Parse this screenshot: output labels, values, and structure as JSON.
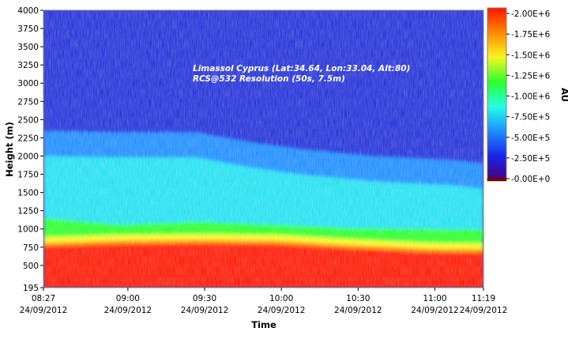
{
  "chart_data": {
    "type": "heatmap",
    "title": "",
    "annotations": [
      "Limassol Cyprus (Lat:34.64, Lon:33.04, Alt:80)",
      "RCS@532 Resolution (50s, 7.5m)"
    ],
    "xlabel": "Time",
    "ylabel": "Height (m)",
    "colorbar_label": "AU",
    "ylim": [
      195,
      4000
    ],
    "clim": [
      0,
      2000000
    ],
    "x_ticks": [
      {
        "time": "08:27",
        "date": "24/09/2012"
      },
      {
        "time": "09:00",
        "date": "24/09/2012"
      },
      {
        "time": "09:30",
        "date": "24/09/2012"
      },
      {
        "time": "10:00",
        "date": "24/09/2012"
      },
      {
        "time": "10:30",
        "date": "24/09/2012"
      },
      {
        "time": "11:00",
        "date": "24/09/2012"
      },
      {
        "time": "11:19",
        "date": "24/09/2012"
      }
    ],
    "y_ticks": [
      195,
      500,
      750,
      1000,
      1250,
      1500,
      1750,
      2000,
      2250,
      2500,
      2750,
      3000,
      3250,
      3500,
      3750,
      4000
    ],
    "colorbar_ticks": [
      "2.00E+6",
      "1.75E+6",
      "1.50E+6",
      "1.25E+6",
      "1.00E+6",
      "7.50E+5",
      "5.00E+5",
      "2.50E+5",
      "0.00E+0"
    ],
    "colorbar_tick_values": [
      2000000,
      1750000,
      1500000,
      1250000,
      1000000,
      750000,
      500000,
      250000,
      0
    ],
    "colormap_stops": [
      "#4a0077",
      "#1a22e8",
      "#1e8cff",
      "#22ffe6",
      "#2cff2c",
      "#f5f520",
      "#ff8a00",
      "#ff1500"
    ],
    "layer_tops_m": {
      "saturated_red": [
        [
          0,
          760
        ],
        [
          30,
          790
        ],
        [
          60,
          800
        ],
        [
          90,
          790
        ],
        [
          120,
          730
        ],
        [
          150,
          680
        ],
        [
          172,
          670
        ]
      ],
      "green_aerosol_top": [
        [
          0,
          1150
        ],
        [
          30,
          1060
        ],
        [
          60,
          1100
        ],
        [
          90,
          1060
        ],
        [
          120,
          1010
        ],
        [
          150,
          1000
        ],
        [
          172,
          990
        ]
      ],
      "boundary_layer_top": [
        [
          0,
          2350
        ],
        [
          30,
          2330
        ],
        [
          60,
          2330
        ],
        [
          80,
          2200
        ],
        [
          100,
          2100
        ],
        [
          130,
          2000
        ],
        [
          160,
          1950
        ],
        [
          172,
          1900
        ]
      ]
    }
  }
}
